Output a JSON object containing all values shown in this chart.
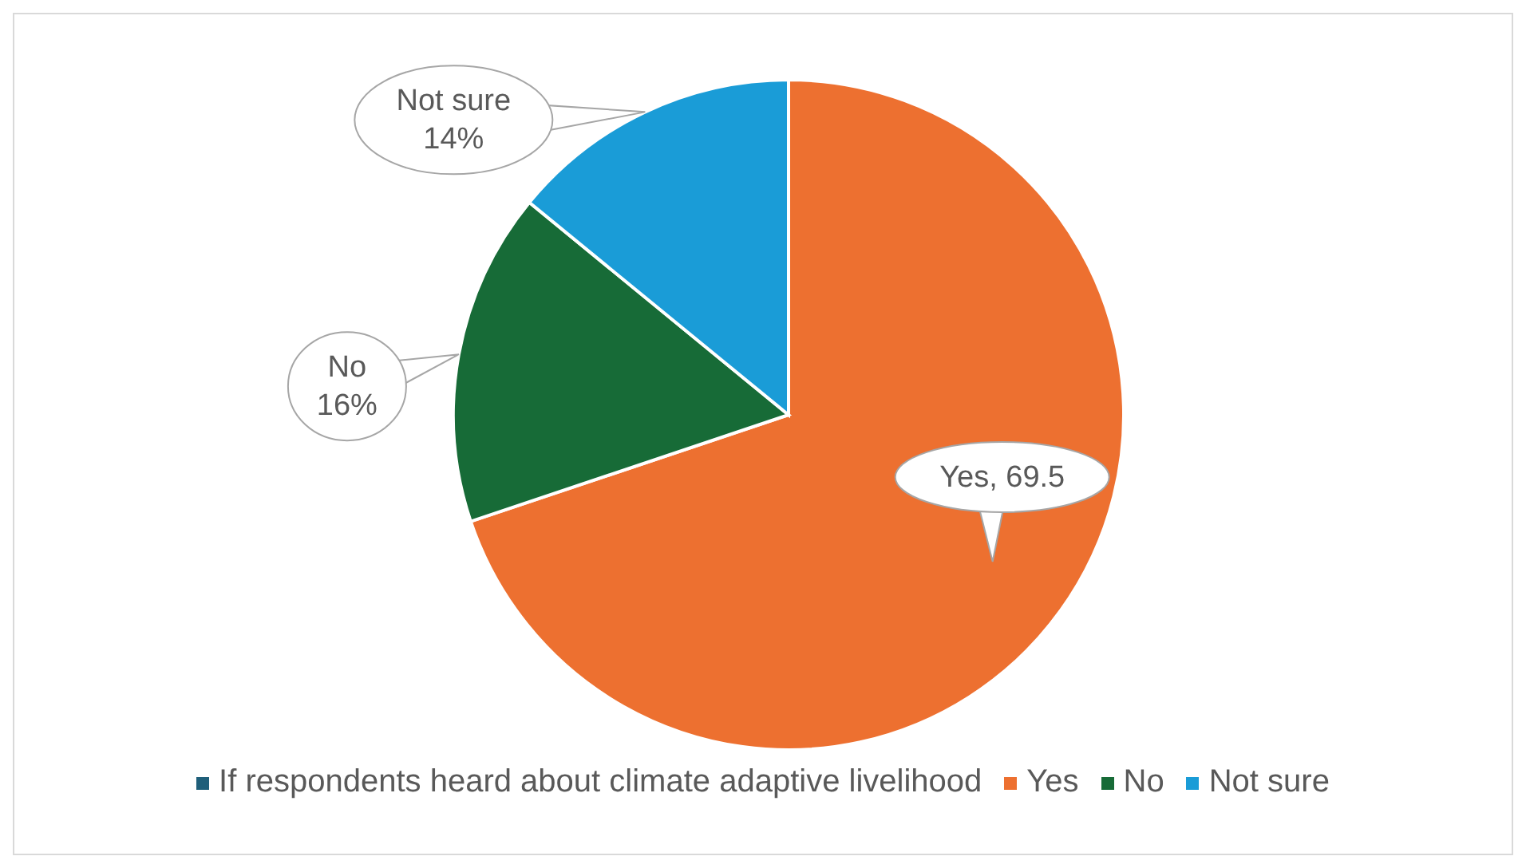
{
  "chart_data": {
    "type": "pie",
    "legend_title": "If respondents heard about climate adaptive livelihood",
    "categories": [
      "Yes",
      "No",
      "Not sure"
    ],
    "values": [
      69.5,
      16,
      14
    ],
    "colors": [
      "#ed7030",
      "#176b37",
      "#1a9cd7"
    ],
    "value_labels": [
      "Yes, 69.5",
      "No\n16%",
      "Not sure\n14%"
    ],
    "legend": "bottom"
  }
}
